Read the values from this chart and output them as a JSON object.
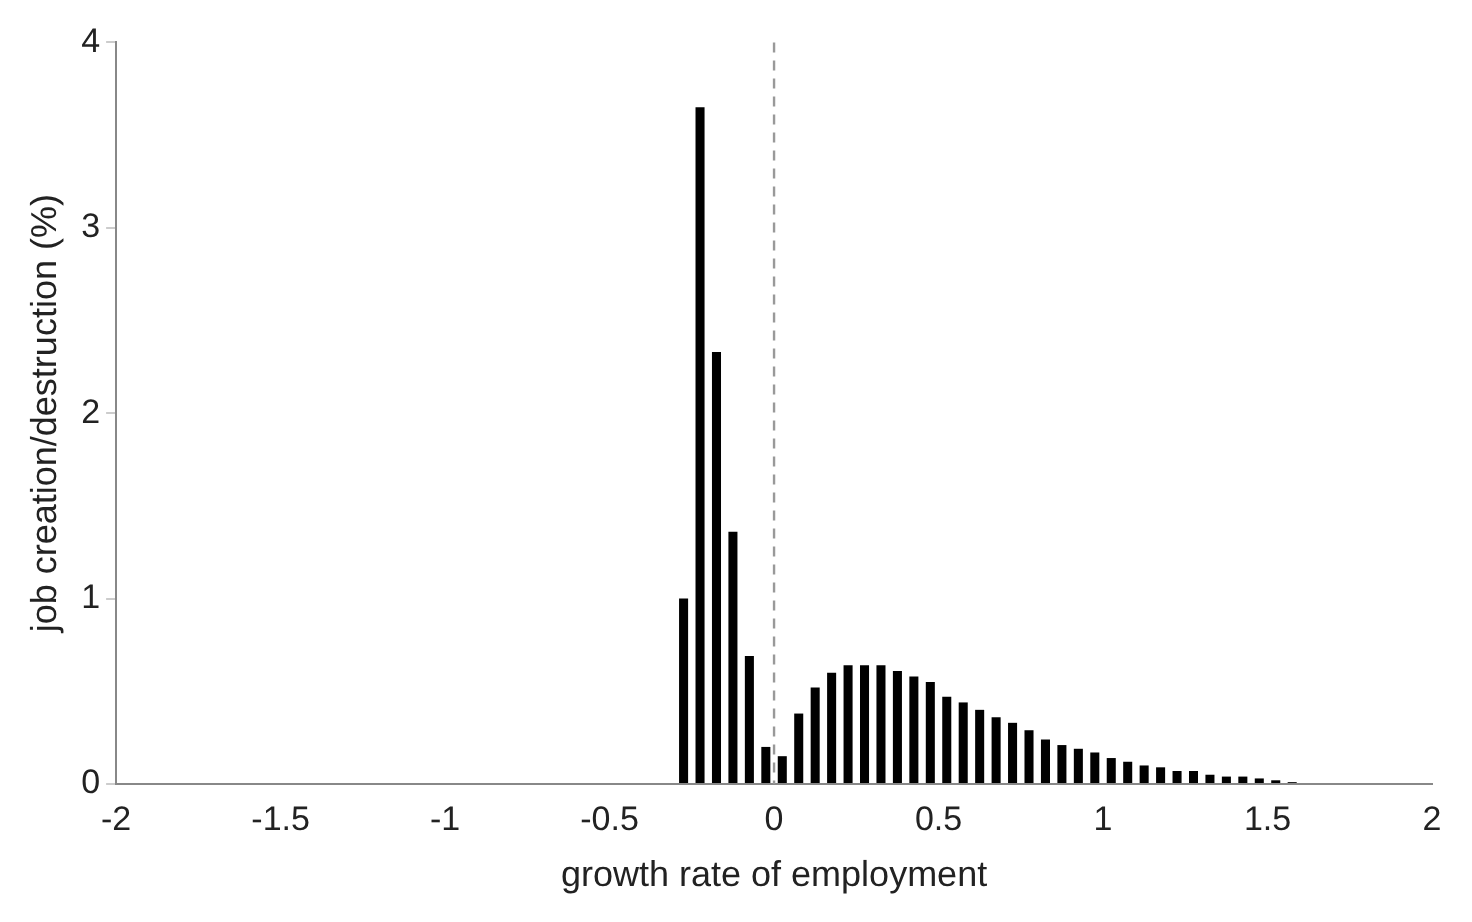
{
  "chart_data": {
    "type": "histogram",
    "xlabel": "growth rate of employment",
    "ylabel": "job creation/destruction (%)",
    "bins": [
      -0.3,
      -0.25,
      -0.2,
      -0.15,
      -0.1,
      -0.05,
      0,
      0.05,
      0.1,
      0.15,
      0.2,
      0.25,
      0.3,
      0.35,
      0.4,
      0.45,
      0.5,
      0.55,
      0.6,
      0.65,
      0.7,
      0.75,
      0.8,
      0.85,
      0.9,
      0.95,
      1,
      1.05,
      1.1,
      1.15,
      1.2,
      1.25,
      1.3,
      1.35,
      1.4,
      1.45,
      1.5,
      1.55,
      1.6
    ],
    "values": [
      1.0,
      3.65,
      2.33,
      1.36,
      0.69,
      0.2,
      0.15,
      0.38,
      0.52,
      0.6,
      0.64,
      0.64,
      0.64,
      0.61,
      0.58,
      0.55,
      0.47,
      0.44,
      0.4,
      0.36,
      0.33,
      0.29,
      0.24,
      0.21,
      0.19,
      0.17,
      0.14,
      0.12,
      0.1,
      0.09,
      0.07,
      0.07,
      0.05,
      0.04,
      0.04,
      0.03,
      0.02,
      0.01
    ],
    "color": "#000000",
    "xlim": [
      -2,
      2
    ],
    "xticks": [
      -2,
      -1.5,
      -1,
      -0.5,
      0,
      0.5,
      1,
      1.5,
      2
    ],
    "ylim": [
      0,
      4
    ],
    "yticks": [
      0,
      1,
      2,
      3,
      4
    ],
    "grid": false,
    "legend": false,
    "ref_lines": [
      {
        "axis": "x",
        "value": 0,
        "color": "#999999",
        "line_style": "dashed"
      }
    ]
  }
}
